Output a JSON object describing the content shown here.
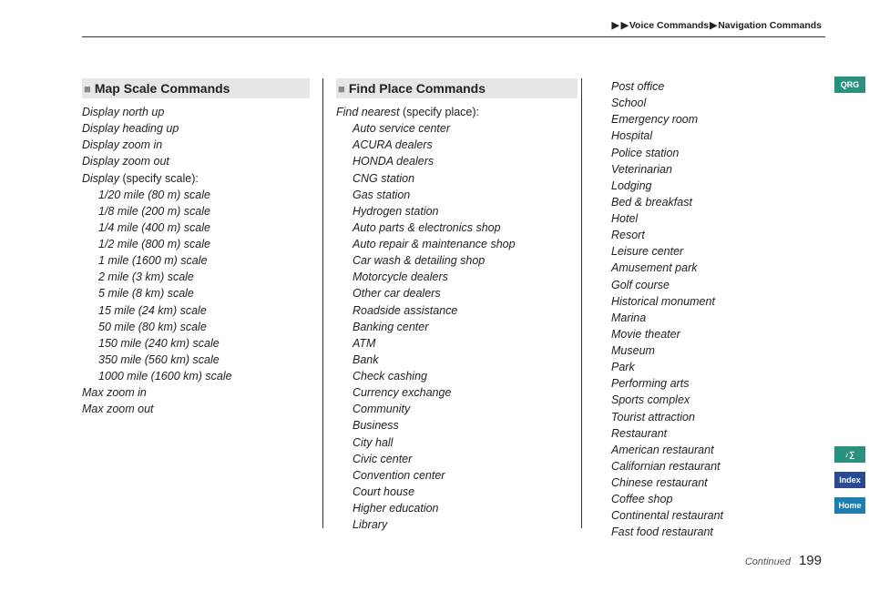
{
  "breadcrumb": {
    "a": "Voice Commands",
    "b": "Navigation Commands"
  },
  "pageNumber": "199",
  "continued": "Continued",
  "tabs": {
    "qrg": "QRG",
    "sym": "♪∑",
    "index": "Index",
    "home": "Home"
  },
  "sections": {
    "mapScale": {
      "title": "Map Scale Commands",
      "items": [
        {
          "t": "Display north up"
        },
        {
          "t": "Display heading up"
        },
        {
          "t": "Display zoom in"
        },
        {
          "t": "Display zoom out"
        },
        {
          "t": "Display",
          "after": " (specify scale):"
        },
        {
          "t": "1/20 mile (80 m) scale",
          "sub": true
        },
        {
          "t": "1/8 mile (200 m) scale",
          "sub": true
        },
        {
          "t": "1/4 mile (400 m) scale",
          "sub": true
        },
        {
          "t": "1/2 mile (800 m) scale",
          "sub": true
        },
        {
          "t": "1 mile (1600 m) scale",
          "sub": true
        },
        {
          "t": "2 mile (3 km) scale",
          "sub": true
        },
        {
          "t": "5 mile (8 km) scale",
          "sub": true
        },
        {
          "t": "15 mile (24 km) scale",
          "sub": true
        },
        {
          "t": "50 mile (80 km) scale",
          "sub": true
        },
        {
          "t": "150 mile (240 km) scale",
          "sub": true
        },
        {
          "t": "350 mile (560 km) scale",
          "sub": true
        },
        {
          "t": "1000 mile (1600 km) scale",
          "sub": true
        },
        {
          "t": "Max zoom in"
        },
        {
          "t": "Max zoom out"
        }
      ]
    },
    "findPlace": {
      "title": "Find Place Commands",
      "items": [
        {
          "t": "Find nearest",
          "after": " (specify place):"
        },
        {
          "t": "Auto service center",
          "sub": true
        },
        {
          "t": "ACURA dealers",
          "sub": true
        },
        {
          "t": "HONDA dealers",
          "sub": true
        },
        {
          "t": "CNG station",
          "sub": true
        },
        {
          "t": "Gas station",
          "sub": true
        },
        {
          "t": "Hydrogen station",
          "sub": true
        },
        {
          "t": "Auto parts & electronics shop",
          "sub": true
        },
        {
          "t": "Auto repair & maintenance shop",
          "sub": true
        },
        {
          "t": "Car wash & detailing shop",
          "sub": true
        },
        {
          "t": "Motorcycle dealers",
          "sub": true
        },
        {
          "t": "Other car dealers",
          "sub": true
        },
        {
          "t": "Roadside assistance",
          "sub": true
        },
        {
          "t": "Banking center",
          "sub": true
        },
        {
          "t": "ATM",
          "sub": true
        },
        {
          "t": "Bank",
          "sub": true
        },
        {
          "t": "Check cashing",
          "sub": true
        },
        {
          "t": "Currency exchange",
          "sub": true
        },
        {
          "t": "Community",
          "sub": true
        },
        {
          "t": "Business",
          "sub": true
        },
        {
          "t": "City hall",
          "sub": true
        },
        {
          "t": "Civic center",
          "sub": true
        },
        {
          "t": "Convention center",
          "sub": true
        },
        {
          "t": "Court house",
          "sub": true
        },
        {
          "t": "Higher education",
          "sub": true
        },
        {
          "t": "Library",
          "sub": true
        }
      ]
    },
    "findPlace2": {
      "items": [
        {
          "t": "Post office",
          "sub": true
        },
        {
          "t": "School",
          "sub": true
        },
        {
          "t": "Emergency room",
          "sub": true
        },
        {
          "t": "Hospital",
          "sub": true
        },
        {
          "t": "Police station",
          "sub": true
        },
        {
          "t": "Veterinarian",
          "sub": true
        },
        {
          "t": "Lodging",
          "sub": true
        },
        {
          "t": "Bed & breakfast",
          "sub": true
        },
        {
          "t": "Hotel",
          "sub": true
        },
        {
          "t": "Resort",
          "sub": true
        },
        {
          "t": "Leisure center",
          "sub": true
        },
        {
          "t": "Amusement park",
          "sub": true
        },
        {
          "t": "Golf course",
          "sub": true
        },
        {
          "t": "Historical monument",
          "sub": true
        },
        {
          "t": "Marina",
          "sub": true
        },
        {
          "t": "Movie theater",
          "sub": true
        },
        {
          "t": "Museum",
          "sub": true
        },
        {
          "t": "Park",
          "sub": true
        },
        {
          "t": "Performing arts",
          "sub": true
        },
        {
          "t": "Sports complex",
          "sub": true
        },
        {
          "t": "Tourist attraction",
          "sub": true
        },
        {
          "t": "Restaurant",
          "sub": true
        },
        {
          "t": "American restaurant",
          "sub": true
        },
        {
          "t": "Californian restaurant",
          "sub": true
        },
        {
          "t": "Chinese restaurant",
          "sub": true
        },
        {
          "t": "Coffee shop",
          "sub": true
        },
        {
          "t": "Continental restaurant",
          "sub": true
        },
        {
          "t": "Fast food restaurant",
          "sub": true
        }
      ]
    }
  }
}
